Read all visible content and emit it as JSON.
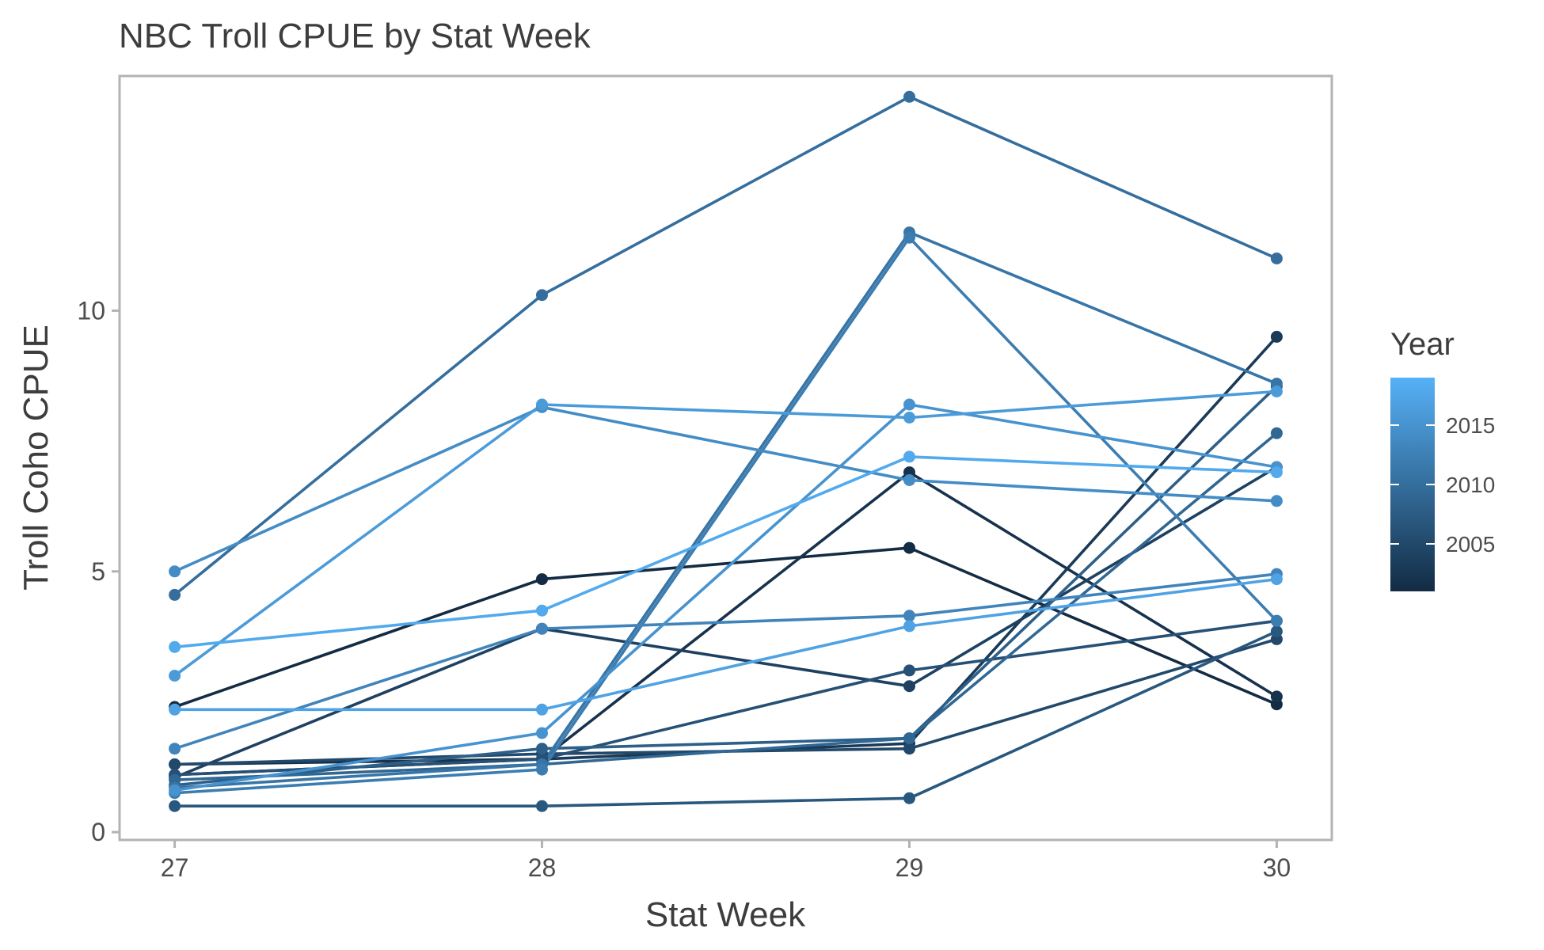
{
  "chart_data": {
    "type": "line",
    "title": "NBC Troll CPUE by Stat Week",
    "xlabel": "Stat Week",
    "ylabel": "Troll Coho CPUE",
    "x": [
      27,
      28,
      29,
      30
    ],
    "xlim": [
      26.85,
      30.15
    ],
    "ylim": [
      -0.15,
      14.5
    ],
    "yticks": [
      0,
      5,
      10
    ],
    "grid": false,
    "legend": {
      "title": "Year",
      "type": "colorbar",
      "position": "right",
      "range": [
        2001,
        2019
      ],
      "ticks": [
        2005,
        2010,
        2015
      ],
      "color_low": "#132b43",
      "color_high": "#56b1f7"
    },
    "series": [
      {
        "year": 2001,
        "values": [
          2.4,
          4.85,
          5.45,
          2.45
        ]
      },
      {
        "year": 2002,
        "values": [
          1.3,
          1.4,
          6.9,
          2.6
        ]
      },
      {
        "year": 2003,
        "values": [
          1.1,
          1.4,
          1.7,
          9.5
        ]
      },
      {
        "year": 2004,
        "values": [
          1.05,
          3.9,
          2.8,
          7.0
        ]
      },
      {
        "year": 2005,
        "values": [
          1.3,
          1.5,
          1.6,
          3.7
        ]
      },
      {
        "year": 2006,
        "values": [
          1.1,
          1.4,
          3.1,
          4.05
        ]
      },
      {
        "year": 2007,
        "values": [
          0.5,
          0.5,
          0.65,
          3.85
        ]
      },
      {
        "year": 2008,
        "values": [
          0.9,
          1.6,
          1.8,
          8.55
        ]
      },
      {
        "year": 2009,
        "values": [
          1.0,
          1.3,
          1.8,
          7.65
        ]
      },
      {
        "year": 2010,
        "values": [
          4.55,
          10.3,
          14.1,
          11.0
        ]
      },
      {
        "year": 2011,
        "values": [
          0.85,
          1.3,
          11.5,
          8.6
        ]
      },
      {
        "year": 2012,
        "values": [
          0.75,
          1.2,
          11.4,
          4.05
        ]
      },
      {
        "year": 2013,
        "values": [
          1.6,
          3.9,
          4.15,
          4.95
        ]
      },
      {
        "year": 2014,
        "values": [
          5.0,
          8.15,
          6.75,
          6.35
        ]
      },
      {
        "year": 2015,
        "values": [
          0.8,
          1.9,
          8.2,
          7.0
        ]
      },
      {
        "year": 2016,
        "values": [
          3.0,
          8.2,
          7.95,
          8.45
        ]
      },
      {
        "year": 2017,
        "values": [
          2.35,
          2.35,
          3.95,
          4.85
        ]
      },
      {
        "year": 2018,
        "values": [
          3.55,
          4.25,
          7.2,
          6.9
        ]
      }
    ]
  }
}
